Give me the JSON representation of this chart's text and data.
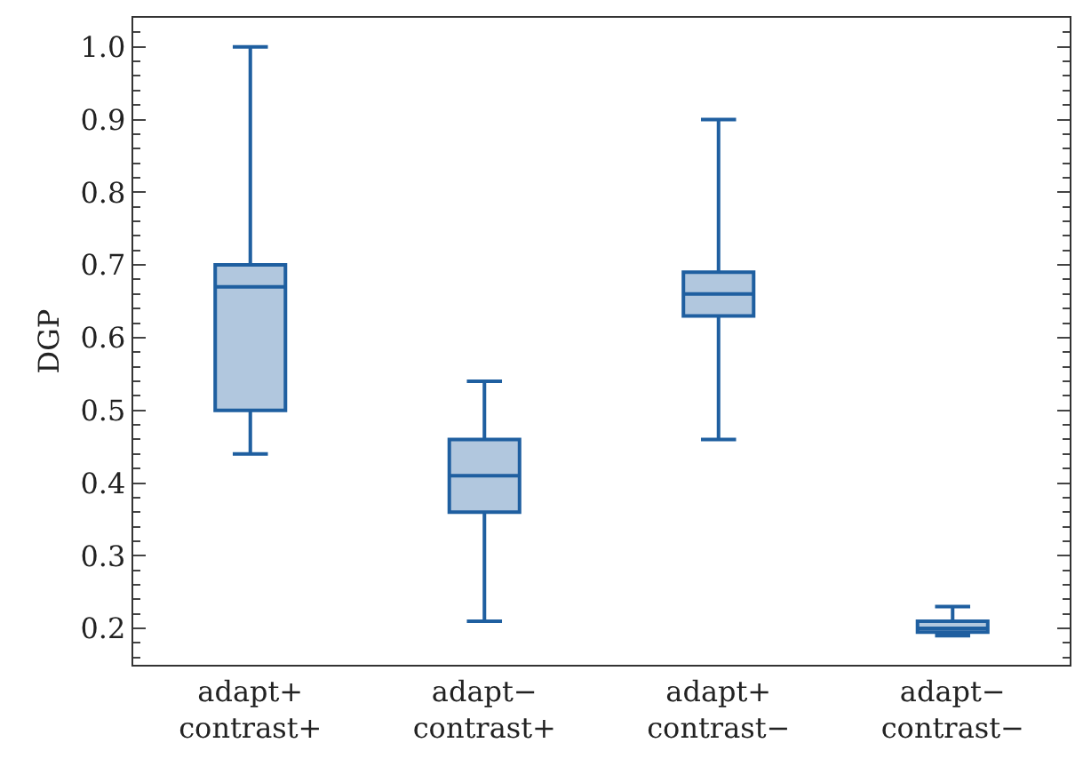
{
  "chart_data": {
    "type": "box",
    "ylabel": "DGP",
    "categories": [
      "adapt+\ncontrast+",
      "adapt−\ncontrast+",
      "adapt+\ncontrast−",
      "adapt−\ncontrast−"
    ],
    "color": "#1f5fa0",
    "boxes": [
      {
        "low": 0.44,
        "q1": 0.5,
        "median": 0.67,
        "q3": 0.7,
        "high": 1.0
      },
      {
        "low": 0.21,
        "q1": 0.36,
        "median": 0.41,
        "q3": 0.46,
        "high": 0.54
      },
      {
        "low": 0.46,
        "q1": 0.63,
        "median": 0.66,
        "q3": 0.69,
        "high": 0.9
      },
      {
        "low": 0.19,
        "q1": 0.195,
        "median": 0.2,
        "q3": 0.21,
        "high": 0.23
      }
    ],
    "ylim": [
      0.15,
      1.04
    ],
    "yticks": [
      0.2,
      0.3,
      0.4,
      0.5,
      0.6,
      0.7,
      0.8,
      0.9,
      {
        "value": 1,
        "label": "1.0"
      }
    ],
    "grid": false
  }
}
